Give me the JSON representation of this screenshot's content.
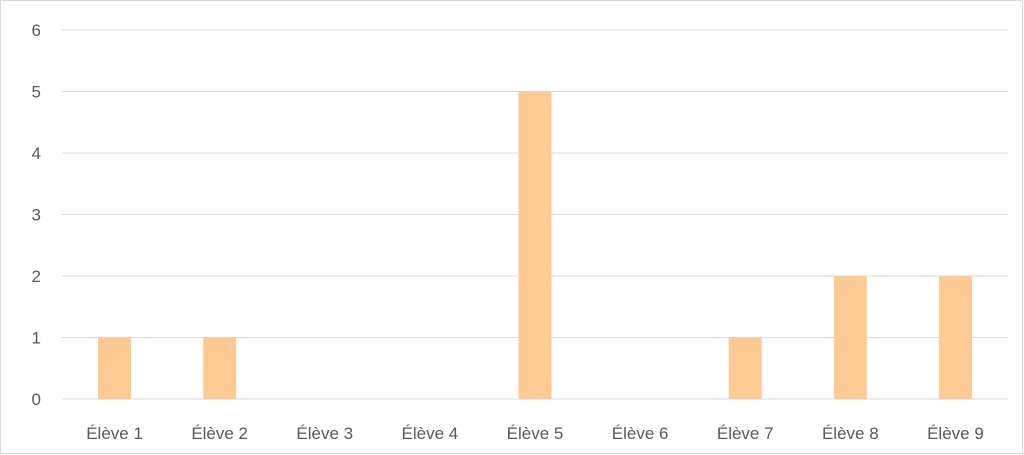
{
  "chart_data": {
    "type": "bar",
    "title": "",
    "xlabel": "",
    "ylabel": "",
    "categories": [
      "Élève 1",
      "Élève 2",
      "Élève 3",
      "Élève 4",
      "Élève 5",
      "Élève 6",
      "Élève 7",
      "Élève 8",
      "Élève 9"
    ],
    "values": [
      1,
      1,
      0,
      0,
      5,
      0,
      1,
      2,
      2
    ],
    "ylim": [
      0,
      6
    ],
    "yticks": [
      "0",
      "1",
      "2",
      "3",
      "4",
      "5",
      "6"
    ],
    "grid": true,
    "legend": "none",
    "bar_color": "#fdca94"
  }
}
